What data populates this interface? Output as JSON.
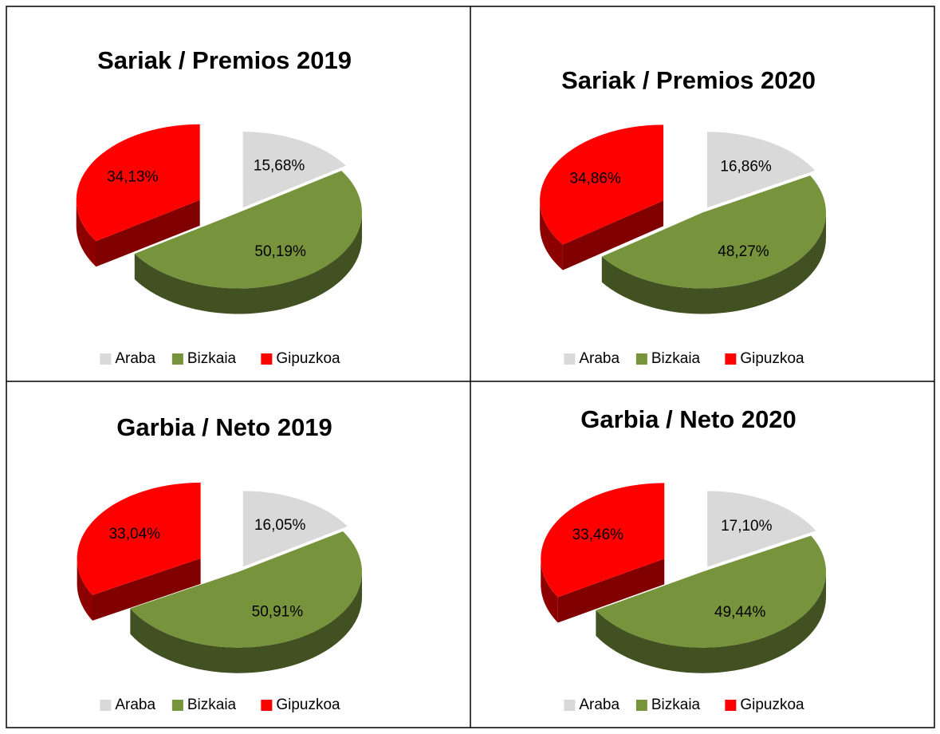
{
  "chart_data": [
    {
      "type": "pie",
      "title": "Sariak / Premios 2019",
      "categories": [
        "Araba",
        "Bizkaia",
        "Gipuzkoa"
      ],
      "values": [
        15.68,
        50.19,
        34.13
      ],
      "value_labels": [
        "15,68%",
        "50,19%",
        "34,13%"
      ],
      "colors": [
        "#d9d9d9",
        "#77933c",
        "#ff0000"
      ],
      "legend": "bottom"
    },
    {
      "type": "pie",
      "title": "Sariak / Premios 2020",
      "categories": [
        "Araba",
        "Bizkaia",
        "Gipuzkoa"
      ],
      "values": [
        16.86,
        48.27,
        34.86
      ],
      "value_labels": [
        "16,86%",
        "48,27%",
        "34,86%"
      ],
      "colors": [
        "#d9d9d9",
        "#77933c",
        "#ff0000"
      ],
      "legend": "bottom"
    },
    {
      "type": "pie",
      "title": "Garbia / Neto 2019",
      "categories": [
        "Araba",
        "Bizkaia",
        "Gipuzkoa"
      ],
      "values": [
        16.05,
        50.91,
        33.04
      ],
      "value_labels": [
        "16,05%",
        "50,91%",
        "33,04%"
      ],
      "colors": [
        "#d9d9d9",
        "#77933c",
        "#ff0000"
      ],
      "legend": "bottom"
    },
    {
      "type": "pie",
      "title": "Garbia / Neto 2020",
      "categories": [
        "Araba",
        "Bizkaia",
        "Gipuzkoa"
      ],
      "values": [
        17.1,
        49.44,
        33.46
      ],
      "value_labels": [
        "17,10%",
        "49,44%",
        "33,46%"
      ],
      "colors": [
        "#d9d9d9",
        "#77933c",
        "#ff0000"
      ],
      "legend": "bottom"
    }
  ]
}
